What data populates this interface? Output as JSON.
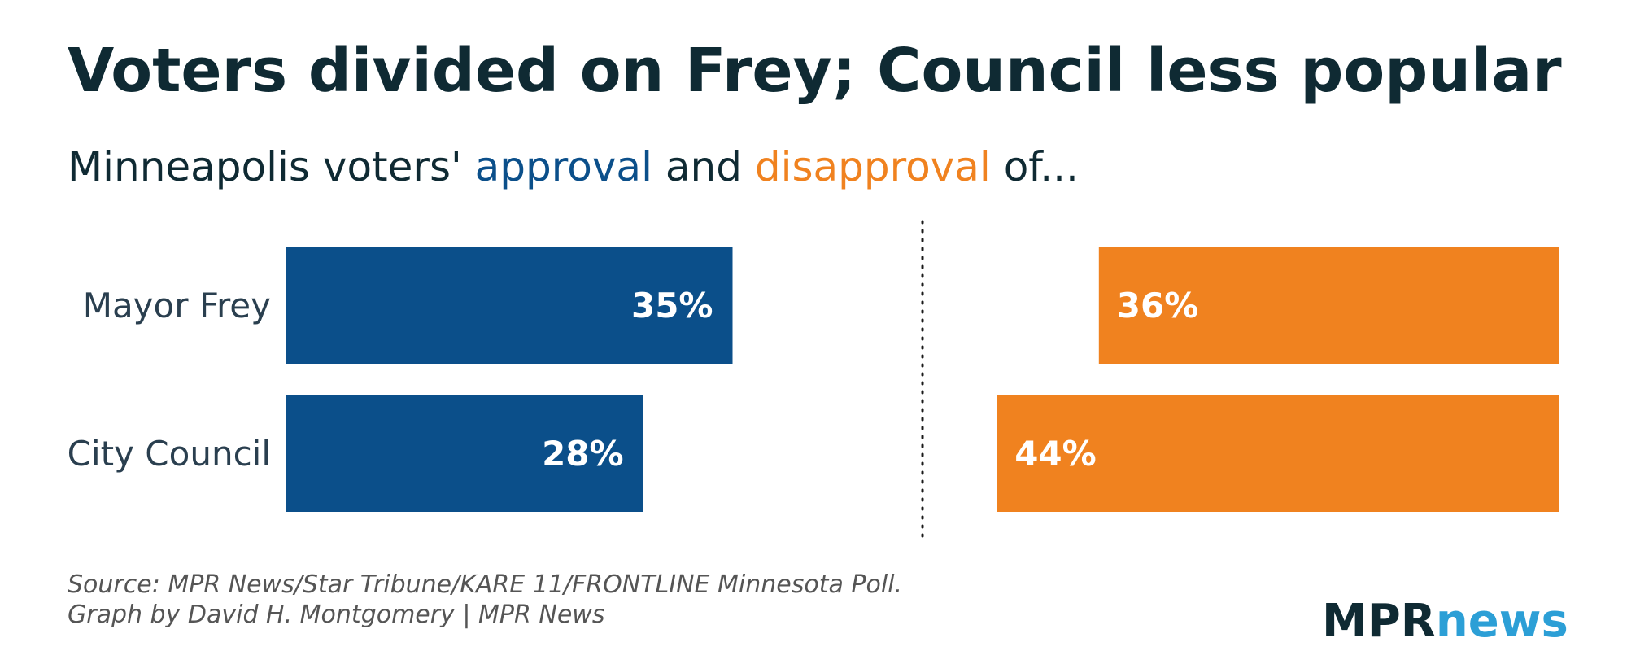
{
  "chart_data": {
    "type": "bar",
    "title": "Voters divided on Frey; Council less popular",
    "subtitle": {
      "prefix": "Minneapolis voters' ",
      "approval_word": "approval",
      "middle": " and ",
      "disapproval_word": "disapproval",
      "suffix": " of..."
    },
    "categories": [
      "Mayor Frey",
      "City Council"
    ],
    "series": [
      {
        "key": "approval",
        "values": [
          35,
          28
        ],
        "labels": [
          "35%",
          "28%"
        ],
        "color": "#0b4f8a"
      },
      {
        "key": "disapproval",
        "values": [
          36,
          44
        ],
        "labels": [
          "36%",
          "44%"
        ],
        "color": "#f0821f"
      }
    ],
    "ylim": [
      0,
      50
    ],
    "divider": "dotted"
  },
  "footer": {
    "source_line1": "Source: MPR News/Star Tribune/KARE 11/FRONTLINE Minnesota Poll.",
    "source_line2": "Graph by David H. Montgomery | MPR News"
  },
  "logo": {
    "part1": "MPR",
    "part2": "news",
    "color1": "#0f2a33",
    "color2": "#2c9fd6"
  },
  "colors": {
    "title": "#0f2a33",
    "approval": "#0b4f8a",
    "disapproval": "#f0821f"
  }
}
